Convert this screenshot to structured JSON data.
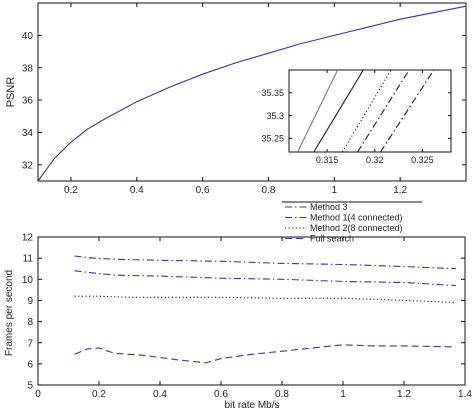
{
  "colors": {
    "blue": "#2b3d9a",
    "dark": "#1c1c1c",
    "gray": "#7a7a7a",
    "axis": "#111111"
  },
  "chart_data": [
    {
      "id": "psnr",
      "type": "line",
      "title": "",
      "xlabel": "",
      "ylabel": "PSNR",
      "xlim": [
        0.1,
        1.4
      ],
      "ylim": [
        31,
        42
      ],
      "xticks": [
        0.2,
        0.4,
        0.6,
        0.8,
        1,
        1.2
      ],
      "xtick_labels": [
        "0.2",
        "0.4",
        "0.6",
        "0.8",
        "1",
        "1.2"
      ],
      "yticks": [
        32,
        34,
        36,
        38,
        40
      ],
      "ytick_labels": [
        "32",
        "34",
        "36",
        "38",
        "40"
      ],
      "grid": false,
      "series": [
        {
          "style": "solid",
          "color": "#2b3d9a",
          "x": [
            0.1,
            0.15,
            0.2,
            0.25,
            0.3,
            0.4,
            0.5,
            0.6,
            0.7,
            0.8,
            0.9,
            1.0,
            1.1,
            1.2,
            1.3,
            1.4
          ],
          "y": [
            31.0,
            32.4,
            33.4,
            34.2,
            34.8,
            35.9,
            36.8,
            37.6,
            38.3,
            38.9,
            39.5,
            40.0,
            40.5,
            41.0,
            41.4,
            41.8
          ]
        }
      ]
    },
    {
      "id": "inset",
      "type": "line",
      "title": "",
      "xlim": [
        0.311,
        0.328
      ],
      "ylim": [
        35.22,
        35.4
      ],
      "xticks": [
        0.315,
        0.32,
        0.325
      ],
      "xtick_labels": [
        "0.315",
        "0.32",
        "0.325"
      ],
      "yticks": [
        35.25,
        35.3,
        35.35
      ],
      "ytick_labels": [
        "35.25",
        "35.3",
        "35.35"
      ],
      "grid": false,
      "series": [
        {
          "name": "Method 3",
          "style": "solid",
          "color": "#7a7a7a",
          "x": [
            0.3119,
            0.3161
          ],
          "y": [
            35.22,
            35.4
          ]
        },
        {
          "name": "Method 1(4 connected)",
          "style": "dashdot",
          "color": "#1c1c1c",
          "x": [
            0.3182,
            0.3236
          ],
          "y": [
            35.22,
            35.4
          ]
        },
        {
          "name": "Method 2(8 connected)",
          "style": "dotted",
          "color": "#1c1c1c",
          "x": [
            0.3166,
            0.3217
          ],
          "y": [
            35.22,
            35.4
          ]
        },
        {
          "name": "Full search",
          "style": "solid",
          "color": "#1c1c1c",
          "x": [
            0.3136,
            0.3188
          ],
          "y": [
            35.22,
            35.4
          ]
        },
        {
          "style": "dashdot",
          "color": "#1c1c1c",
          "x": [
            0.3206,
            0.3262
          ],
          "y": [
            35.22,
            35.4
          ]
        }
      ]
    },
    {
      "id": "fps",
      "type": "line",
      "title": "",
      "xlabel": "bit rate Mb/s",
      "ylabel": "Frames per second",
      "xlim": [
        0,
        1.4
      ],
      "ylim": [
        5,
        12
      ],
      "xticks": [
        0,
        0.2,
        0.4,
        0.6,
        0.8,
        1,
        1.2,
        1.4
      ],
      "xtick_labels": [
        "0",
        "0.2",
        "0.4",
        "0.6",
        "0.8",
        "1",
        "1.2",
        "1.4"
      ],
      "yticks": [
        5,
        6,
        7,
        8,
        9,
        10,
        11,
        12
      ],
      "ytick_labels": [
        "5",
        "6",
        "7",
        "8",
        "9",
        "10",
        "11",
        "12"
      ],
      "grid": false,
      "legend": {
        "placement": "top-right",
        "entries": [
          "Method 3",
          "Method 1(4 connected)",
          "Method 2(8 connected)",
          "Full search"
        ]
      },
      "series": [
        {
          "name": "Method 3",
          "style": "dashdot",
          "color": "#2b3d9a",
          "x": [
            0.12,
            0.18,
            0.25,
            0.4,
            0.6,
            0.8,
            1.0,
            1.2,
            1.37
          ],
          "y": [
            11.1,
            11.0,
            10.95,
            10.9,
            10.85,
            10.75,
            10.7,
            10.6,
            10.5
          ]
        },
        {
          "name": "Method 1(4 connected)",
          "style": "dashdot",
          "color": "#2b3d9a",
          "x": [
            0.12,
            0.18,
            0.25,
            0.4,
            0.6,
            0.8,
            1.0,
            1.2,
            1.37
          ],
          "y": [
            10.4,
            10.3,
            10.2,
            10.15,
            10.05,
            10.0,
            9.9,
            9.85,
            9.7
          ]
        },
        {
          "name": "Method 2(8 connected)",
          "style": "dotted",
          "color": "#1c1c1c",
          "x": [
            0.12,
            0.2,
            0.3,
            0.4,
            0.6,
            0.8,
            1.0,
            1.2,
            1.37
          ],
          "y": [
            9.2,
            9.2,
            9.15,
            9.15,
            9.15,
            9.1,
            9.1,
            9.0,
            8.9
          ]
        },
        {
          "name": "Full search",
          "style": "dashed",
          "color": "#2b3d9a",
          "x": [
            0.12,
            0.16,
            0.2,
            0.25,
            0.35,
            0.45,
            0.55,
            0.6,
            0.7,
            0.8,
            0.9,
            1.0,
            1.1,
            1.2,
            1.37
          ],
          "y": [
            6.45,
            6.7,
            6.75,
            6.5,
            6.4,
            6.2,
            6.05,
            6.25,
            6.45,
            6.6,
            6.75,
            6.9,
            6.85,
            6.85,
            6.8
          ]
        }
      ]
    }
  ]
}
